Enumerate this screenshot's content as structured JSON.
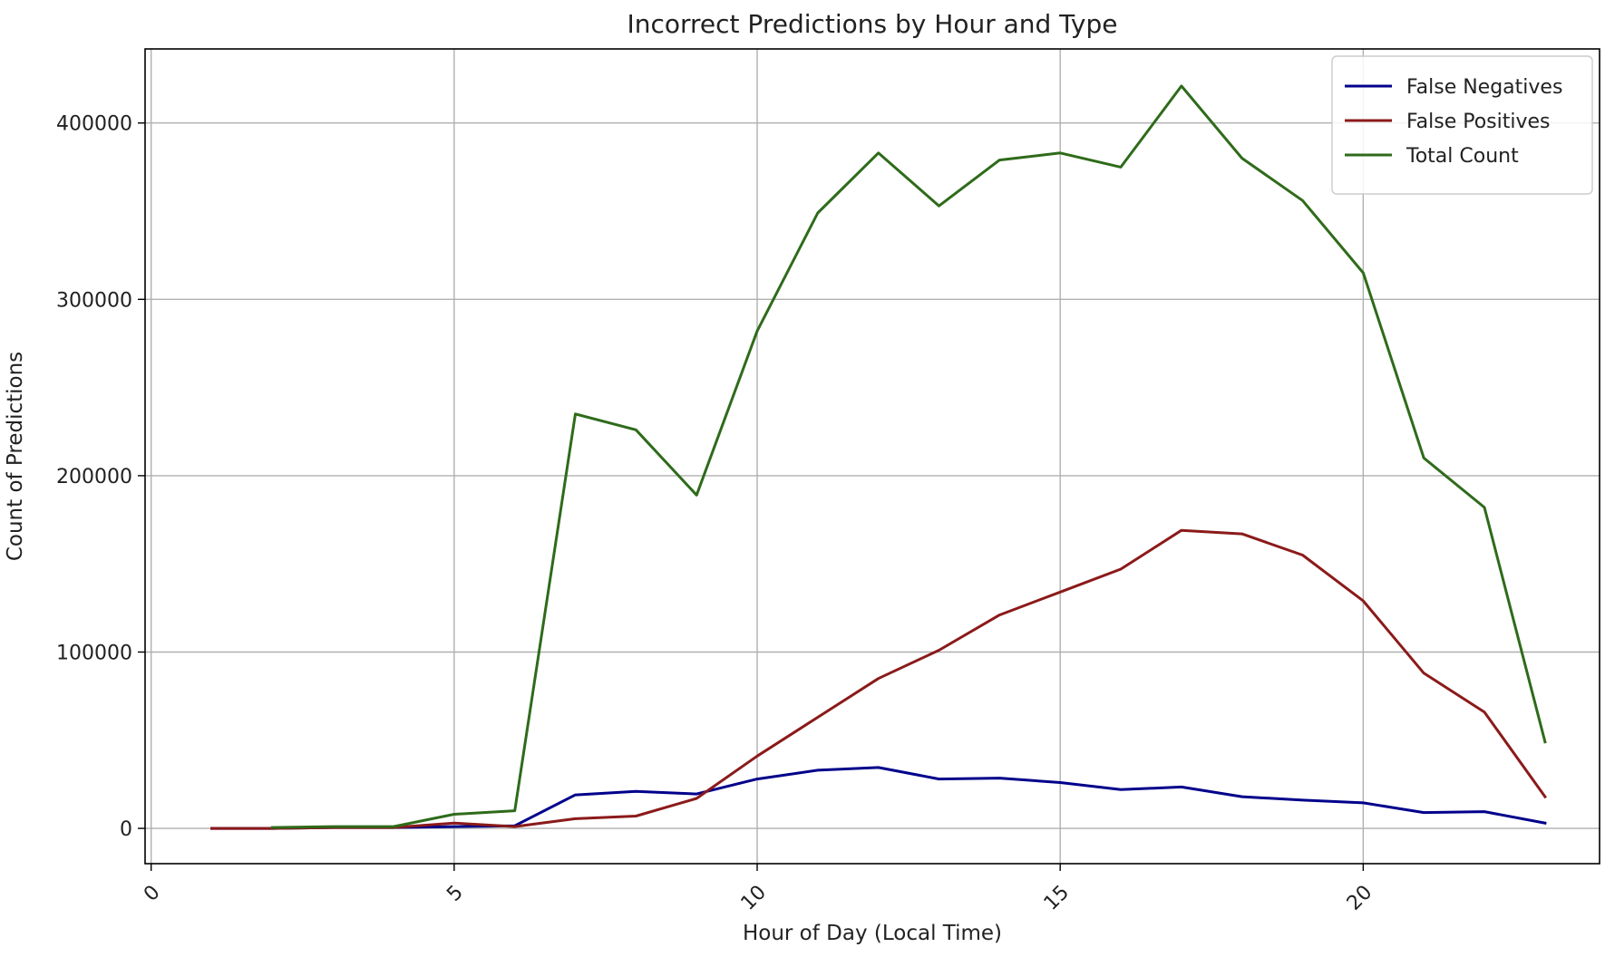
{
  "chart_data": {
    "type": "line",
    "title": "Incorrect Predictions by Hour and Type",
    "xlabel": "Hour of Day (Local Time)",
    "ylabel": "Count of Predictions",
    "xlim": [
      -0.1,
      23.9
    ],
    "ylim": [
      -20000,
      442000
    ],
    "xticks": [
      0,
      5,
      10,
      15,
      20
    ],
    "yticks": [
      0,
      100000,
      200000,
      300000,
      400000
    ],
    "xtick_labels": [
      "0",
      "5",
      "10",
      "15",
      "20"
    ],
    "ytick_labels": [
      "0",
      "100000",
      "200000",
      "300000",
      "400000"
    ],
    "grid": true,
    "legend_position": "top-right",
    "series": [
      {
        "name": "False Negatives",
        "color": "#00008b",
        "x": [
          1,
          2,
          3,
          4,
          5,
          6,
          7,
          8,
          9,
          10,
          11,
          12,
          13,
          14,
          15,
          16,
          17,
          18,
          19,
          20,
          21,
          22,
          23
        ],
        "values": [
          0,
          0,
          500,
          500,
          1000,
          1500,
          19000,
          21000,
          19500,
          28000,
          33000,
          34500,
          28000,
          28500,
          26000,
          22000,
          23500,
          18000,
          16000,
          14500,
          9000,
          9500,
          3000
        ]
      },
      {
        "name": "False Positives",
        "color": "#8b1a1a",
        "x": [
          1,
          2,
          3,
          4,
          5,
          6,
          7,
          8,
          9,
          10,
          11,
          12,
          13,
          14,
          15,
          16,
          17,
          18,
          19,
          20,
          21,
          22,
          23
        ],
        "values": [
          0,
          0,
          500,
          500,
          3000,
          1000,
          5500,
          7000,
          17000,
          41000,
          63000,
          85000,
          101000,
          121000,
          134000,
          147000,
          169000,
          167000,
          155000,
          129000,
          88000,
          66000,
          18000
        ]
      },
      {
        "name": "Total Count",
        "color": "#2e6b1a",
        "x": [
          2,
          3,
          4,
          5,
          6,
          7,
          8,
          9,
          10,
          11,
          12,
          13,
          14,
          15,
          16,
          17,
          18,
          19,
          20,
          21,
          22,
          23
        ],
        "values": [
          500,
          1000,
          1000,
          8000,
          10000,
          235000,
          226000,
          189000,
          282000,
          349000,
          383000,
          353000,
          379000,
          383000,
          375000,
          421000,
          380000,
          356000,
          315000,
          210000,
          182000,
          49000
        ]
      }
    ]
  }
}
